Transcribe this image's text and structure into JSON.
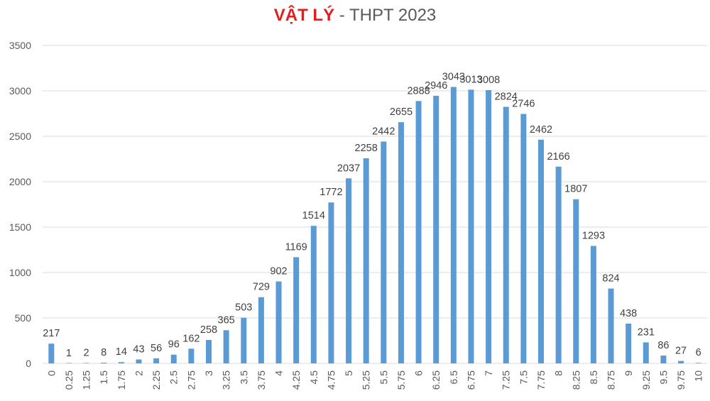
{
  "chart_data": {
    "type": "bar",
    "title_accent": "VẬT LÝ",
    "title_rest": " - THPT 2023",
    "categories": [
      "0",
      "0.25",
      "1.25",
      "1.5",
      "1.75",
      "2",
      "2.25",
      "2.5",
      "2.75",
      "3",
      "3.25",
      "3.5",
      "3.75",
      "4",
      "4.25",
      "4.5",
      "4.75",
      "5",
      "5.25",
      "5.5",
      "5.75",
      "6",
      "6.25",
      "6.5",
      "6.75",
      "7",
      "7.25",
      "7.5",
      "7.75",
      "8",
      "8.25",
      "8.5",
      "8.75",
      "9",
      "9.25",
      "9.5",
      "9.75",
      "10"
    ],
    "values": [
      217,
      1,
      2,
      8,
      14,
      43,
      56,
      96,
      162,
      258,
      365,
      503,
      729,
      902,
      1169,
      1514,
      1772,
      2037,
      2258,
      2442,
      2655,
      2888,
      2946,
      3043,
      3013,
      3008,
      2824,
      2746,
      2462,
      2166,
      1807,
      1293,
      824,
      438,
      231,
      86,
      27,
      6
    ],
    "ylim": [
      0,
      3500
    ],
    "yticks": [
      0,
      500,
      1000,
      1500,
      2000,
      2500,
      3000,
      3500
    ],
    "xlabel": "",
    "ylabel": "",
    "grid": true,
    "legend": "none",
    "bar_color": "#5b9bd5",
    "grid_color": "#d9d9d9"
  }
}
